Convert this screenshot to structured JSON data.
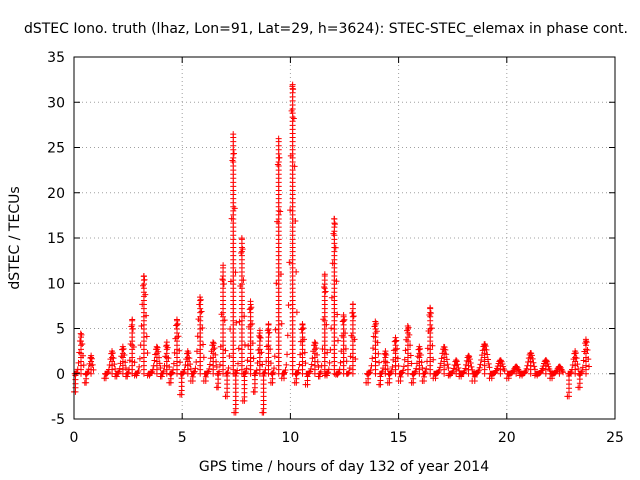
{
  "chart_data": {
    "type": "scatter",
    "title": "dSTEC Iono. truth (lhaz, Lon=91, Lat=29, h=3624): STEC-STEC_elemax in phase cont.",
    "xlabel": "GPS time / hours of day 132 of year 2014",
    "ylabel": "dSTEC  / TECUs",
    "xlim": [
      0,
      25
    ],
    "ylim": [
      -5,
      35
    ],
    "xticks": [
      0,
      5,
      10,
      15,
      20,
      25
    ],
    "yticks": [
      -5,
      0,
      5,
      10,
      15,
      20,
      25,
      30,
      35
    ],
    "xtick_labels": [
      "0",
      "5",
      "10",
      "15",
      "20",
      "25"
    ],
    "ytick_labels": [
      "-5",
      "0",
      "5",
      "10",
      "15",
      "20",
      "25",
      "30",
      "35"
    ],
    "grid": true,
    "marker": "+",
    "series_color": "#ff0000",
    "arcs": [
      {
        "t0": 0.0,
        "t1": 0.45,
        "min": -2.0,
        "max": 4.5
      },
      {
        "t0": 0.5,
        "t1": 0.9,
        "min": -1.0,
        "max": 2.0
      },
      {
        "t0": 1.4,
        "t1": 1.9,
        "min": -0.5,
        "max": 2.5
      },
      {
        "t0": 1.9,
        "t1": 2.4,
        "min": -0.3,
        "max": 3.0
      },
      {
        "t0": 2.4,
        "t1": 2.8,
        "min": -0.3,
        "max": 6.0
      },
      {
        "t0": 2.8,
        "t1": 3.4,
        "min": -0.2,
        "max": 10.8
      },
      {
        "t0": 3.4,
        "t1": 4.0,
        "min": -0.2,
        "max": 3.0
      },
      {
        "t0": 4.0,
        "t1": 4.4,
        "min": -0.3,
        "max": 3.5
      },
      {
        "t0": 4.4,
        "t1": 4.9,
        "min": -1.0,
        "max": 6.0
      },
      {
        "t0": 4.9,
        "t1": 5.4,
        "min": -2.3,
        "max": 2.5
      },
      {
        "t0": 5.4,
        "t1": 6.0,
        "min": -0.8,
        "max": 8.5
      },
      {
        "t0": 6.0,
        "t1": 6.6,
        "min": -0.8,
        "max": 3.5
      },
      {
        "t0": 6.6,
        "t1": 7.0,
        "min": -1.5,
        "max": 12.0
      },
      {
        "t0": 7.0,
        "t1": 7.5,
        "min": -2.5,
        "max": 26.5
      },
      {
        "t0": 7.4,
        "t1": 7.9,
        "min": -4.3,
        "max": 15.0
      },
      {
        "t0": 7.8,
        "t1": 8.3,
        "min": -3.0,
        "max": 8.0
      },
      {
        "t0": 8.3,
        "t1": 8.7,
        "min": -2.0,
        "max": 4.8
      },
      {
        "t0": 8.7,
        "t1": 9.1,
        "min": -4.3,
        "max": 5.5
      },
      {
        "t0": 9.1,
        "t1": 9.6,
        "min": -1.0,
        "max": 26.0
      },
      {
        "t0": 9.6,
        "t1": 10.3,
        "min": -0.5,
        "max": 32.0
      },
      {
        "t0": 10.2,
        "t1": 10.7,
        "min": -1.0,
        "max": 5.5
      },
      {
        "t0": 10.7,
        "t1": 11.3,
        "min": -1.2,
        "max": 3.5
      },
      {
        "t0": 11.3,
        "t1": 11.7,
        "min": -0.3,
        "max": 11.0
      },
      {
        "t0": 11.6,
        "t1": 12.2,
        "min": -0.2,
        "max": 17.2
      },
      {
        "t0": 12.1,
        "t1": 12.6,
        "min": -0.1,
        "max": 6.5
      },
      {
        "t0": 12.6,
        "t1": 13.0,
        "min": 0.0,
        "max": 7.7
      },
      {
        "t0": 13.5,
        "t1": 14.1,
        "min": -1.0,
        "max": 5.8
      },
      {
        "t0": 14.1,
        "t1": 14.5,
        "min": -1.2,
        "max": 2.5
      },
      {
        "t0": 14.5,
        "t1": 15.0,
        "min": -1.0,
        "max": 4.0
      },
      {
        "t0": 15.0,
        "t1": 15.6,
        "min": -0.8,
        "max": 5.3
      },
      {
        "t0": 15.6,
        "t1": 16.1,
        "min": -1.0,
        "max": 3.0
      },
      {
        "t0": 16.1,
        "t1": 16.6,
        "min": -0.8,
        "max": 7.3
      },
      {
        "t0": 16.6,
        "t1": 17.3,
        "min": -0.5,
        "max": 3.0
      },
      {
        "t0": 17.3,
        "t1": 17.8,
        "min": -0.2,
        "max": 1.5
      },
      {
        "t0": 17.8,
        "t1": 18.4,
        "min": -0.3,
        "max": 2.0
      },
      {
        "t0": 18.4,
        "t1": 19.2,
        "min": -0.8,
        "max": 3.3
      },
      {
        "t0": 19.2,
        "t1": 19.9,
        "min": -0.5,
        "max": 1.5
      },
      {
        "t0": 20.0,
        "t1": 20.6,
        "min": -0.5,
        "max": 0.8
      },
      {
        "t0": 20.6,
        "t1": 21.3,
        "min": -0.2,
        "max": 2.3
      },
      {
        "t0": 21.3,
        "t1": 22.0,
        "min": -0.2,
        "max": 1.5
      },
      {
        "t0": 22.0,
        "t1": 22.6,
        "min": -0.5,
        "max": 0.8
      },
      {
        "t0": 22.8,
        "t1": 23.3,
        "min": -2.5,
        "max": 2.5
      },
      {
        "t0": 23.3,
        "t1": 23.8,
        "min": -1.5,
        "max": 3.8
      }
    ]
  }
}
